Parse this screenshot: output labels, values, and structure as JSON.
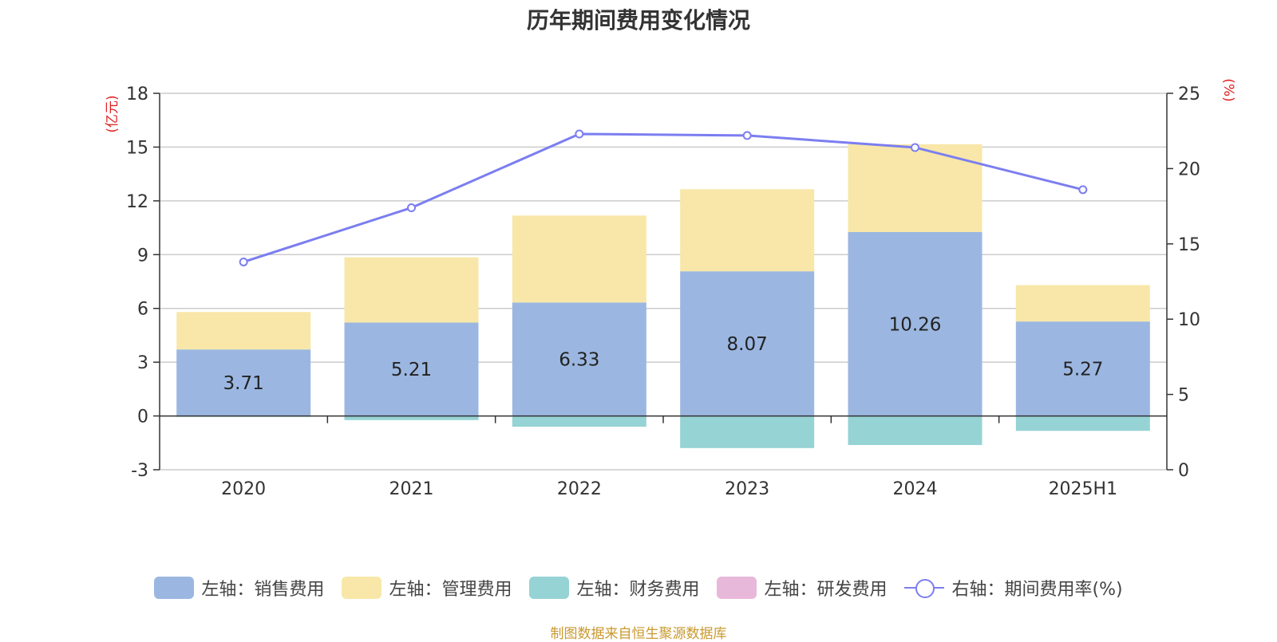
{
  "chart_data": {
    "type": "bar",
    "title": "历年期间费用变化情况",
    "categories": [
      "2020",
      "2021",
      "2022",
      "2023",
      "2024",
      "2025H1"
    ],
    "left_axis": {
      "unit_label": "(亿元)",
      "ticks": [
        18,
        15,
        12,
        9,
        6,
        3,
        0,
        -3
      ],
      "ylim": [
        -3,
        18
      ]
    },
    "right_axis": {
      "unit_label": "(%)",
      "ticks": [
        25,
        20,
        15,
        10,
        5,
        0
      ],
      "ylim": [
        0,
        25
      ]
    },
    "stacked": true,
    "series": [
      {
        "name": "左轴：销售费用",
        "type": "bar",
        "axis": "left",
        "color": "#9bb7e1",
        "values": [
          3.71,
          5.21,
          6.33,
          8.07,
          10.26,
          5.27
        ],
        "labels": [
          "3.71",
          "5.21",
          "6.33",
          "8.07",
          "10.26",
          "5.27"
        ]
      },
      {
        "name": "左轴：管理费用",
        "type": "bar",
        "axis": "left",
        "color": "#f8e7a8",
        "values": [
          2.09,
          3.64,
          4.85,
          4.58,
          4.9,
          2.03
        ]
      },
      {
        "name": "左轴：财务费用",
        "type": "bar",
        "axis": "left",
        "color": "#96d3d4",
        "values": [
          -0.05,
          -0.23,
          -0.6,
          -1.79,
          -1.62,
          -0.83
        ]
      },
      {
        "name": "左轴：研发费用",
        "type": "bar",
        "axis": "left",
        "color": "#e8b8da",
        "values": [
          0,
          0,
          0,
          0,
          0,
          0
        ]
      },
      {
        "name": "右轴：期间费用率(%)",
        "type": "line",
        "axis": "right",
        "color": "#7b7ef0",
        "values": [
          13.8,
          17.4,
          22.3,
          22.2,
          21.4,
          18.6
        ]
      }
    ],
    "grid": true,
    "legend_position": "bottom"
  },
  "source_note": "制图数据来自恒生聚源数据库"
}
